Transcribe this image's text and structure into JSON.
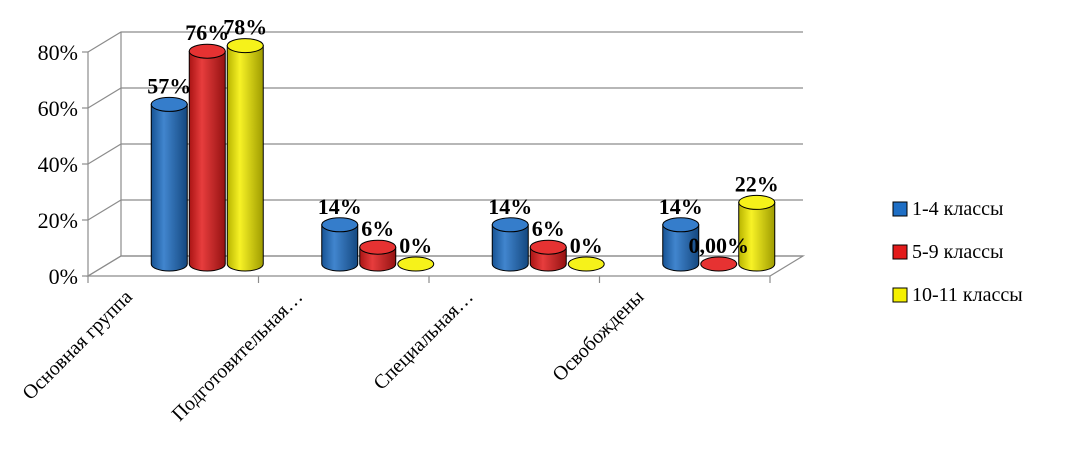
{
  "chart_data": {
    "type": "bar",
    "title": "",
    "xlabel": "",
    "ylabel": "",
    "ylim": [
      0,
      0.8
    ],
    "yticks": [
      "0%",
      "20%",
      "40%",
      "60%",
      "80%"
    ],
    "categories": [
      "Основная группа",
      "Подготовительная…",
      "Специальная…",
      "Освобождены"
    ],
    "series": [
      {
        "name": "1-4 классы",
        "color": "#1f6fc5",
        "values": [
          0.57,
          0.14,
          0.14,
          0.14
        ],
        "labels": [
          "57%",
          "14%",
          "14%",
          "14%"
        ]
      },
      {
        "name": "5-9 классы",
        "color": "#e31b1b",
        "values": [
          0.76,
          0.06,
          0.06,
          0.0
        ],
        "labels": [
          "76%",
          "6%",
          "6%",
          "0,00%"
        ]
      },
      {
        "name": "10-11 классы",
        "color": "#f5f000",
        "values": [
          0.78,
          0.0,
          0.0,
          0.22
        ],
        "labels": [
          "78%",
          "0%",
          "0%",
          "22%"
        ]
      }
    ],
    "grid": true,
    "legend_position": "right",
    "style": "3d-cylinder"
  }
}
